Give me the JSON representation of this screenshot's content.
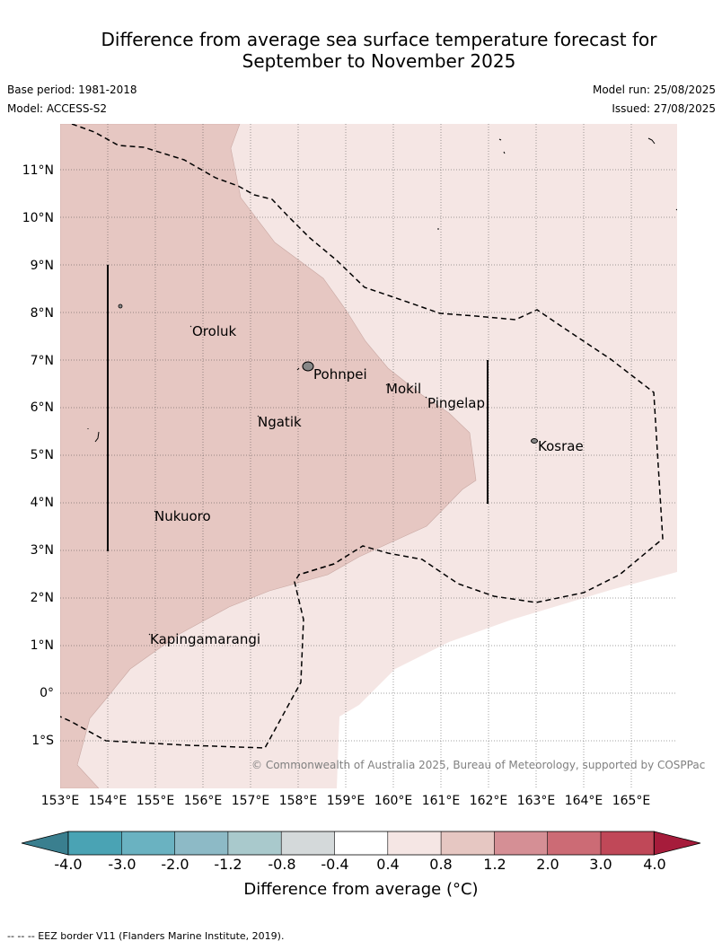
{
  "title": {
    "line1": "Difference from average sea surface temperature forecast for",
    "line2": "September to November 2025"
  },
  "meta": {
    "base_period": "Base period: 1981-2018",
    "model": "Model: ACCESS-S2",
    "model_run": "Model run: 25/08/2025",
    "issued": "Issued: 27/08/2025"
  },
  "map": {
    "lon_range": [
      153,
      166
    ],
    "lat_range": [
      -2,
      12
    ],
    "lat_labels": [
      "11°N",
      "10°N",
      "9°N",
      "8°N",
      "7°N",
      "6°N",
      "5°N",
      "4°N",
      "3°N",
      "2°N",
      "1°N",
      "0°",
      "1°S"
    ],
    "lon_labels": [
      "153°E",
      "154°E",
      "155°E",
      "156°E",
      "157°E",
      "158°E",
      "159°E",
      "160°E",
      "161°E",
      "162°E",
      "163°E",
      "164°E",
      "165°E"
    ],
    "places": [
      {
        "name": "Oroluk"
      },
      {
        "name": "Pohnpei"
      },
      {
        "name": "Mokil"
      },
      {
        "name": "Pingelap"
      },
      {
        "name": "Ngatik"
      },
      {
        "name": "Kosrae"
      },
      {
        "name": "Nukuoro"
      },
      {
        "name": "Kapingamarangi"
      }
    ],
    "copyright": "© Commonwealth of Australia 2025, Bureau of Meteorology, supported by COSPPac",
    "fill_colors": {
      "range_0.4_0.8": "#f5e6e4",
      "range_0.8_1.2": "#e6c7c2"
    }
  },
  "colorbar": {
    "ticks": [
      "-4.0",
      "-3.0",
      "-2.0",
      "-1.2",
      "-0.8",
      "-0.4",
      "0.4",
      "0.8",
      "1.2",
      "2.0",
      "3.0",
      "4.0"
    ],
    "colors": [
      "#3a7f8f",
      "#4aa3b4",
      "#6ab2c1",
      "#8dbac6",
      "#a9c9cc",
      "#d4d9da",
      "#ffffff",
      "#f5e6e4",
      "#e6c7c2",
      "#d58f95",
      "#cc6b75",
      "#c04858",
      "#a61c3b"
    ],
    "label": "Difference from average (°C)"
  },
  "footer": "--  --  -- EEZ border V11 (Flanders Marine Institute, 2019)."
}
